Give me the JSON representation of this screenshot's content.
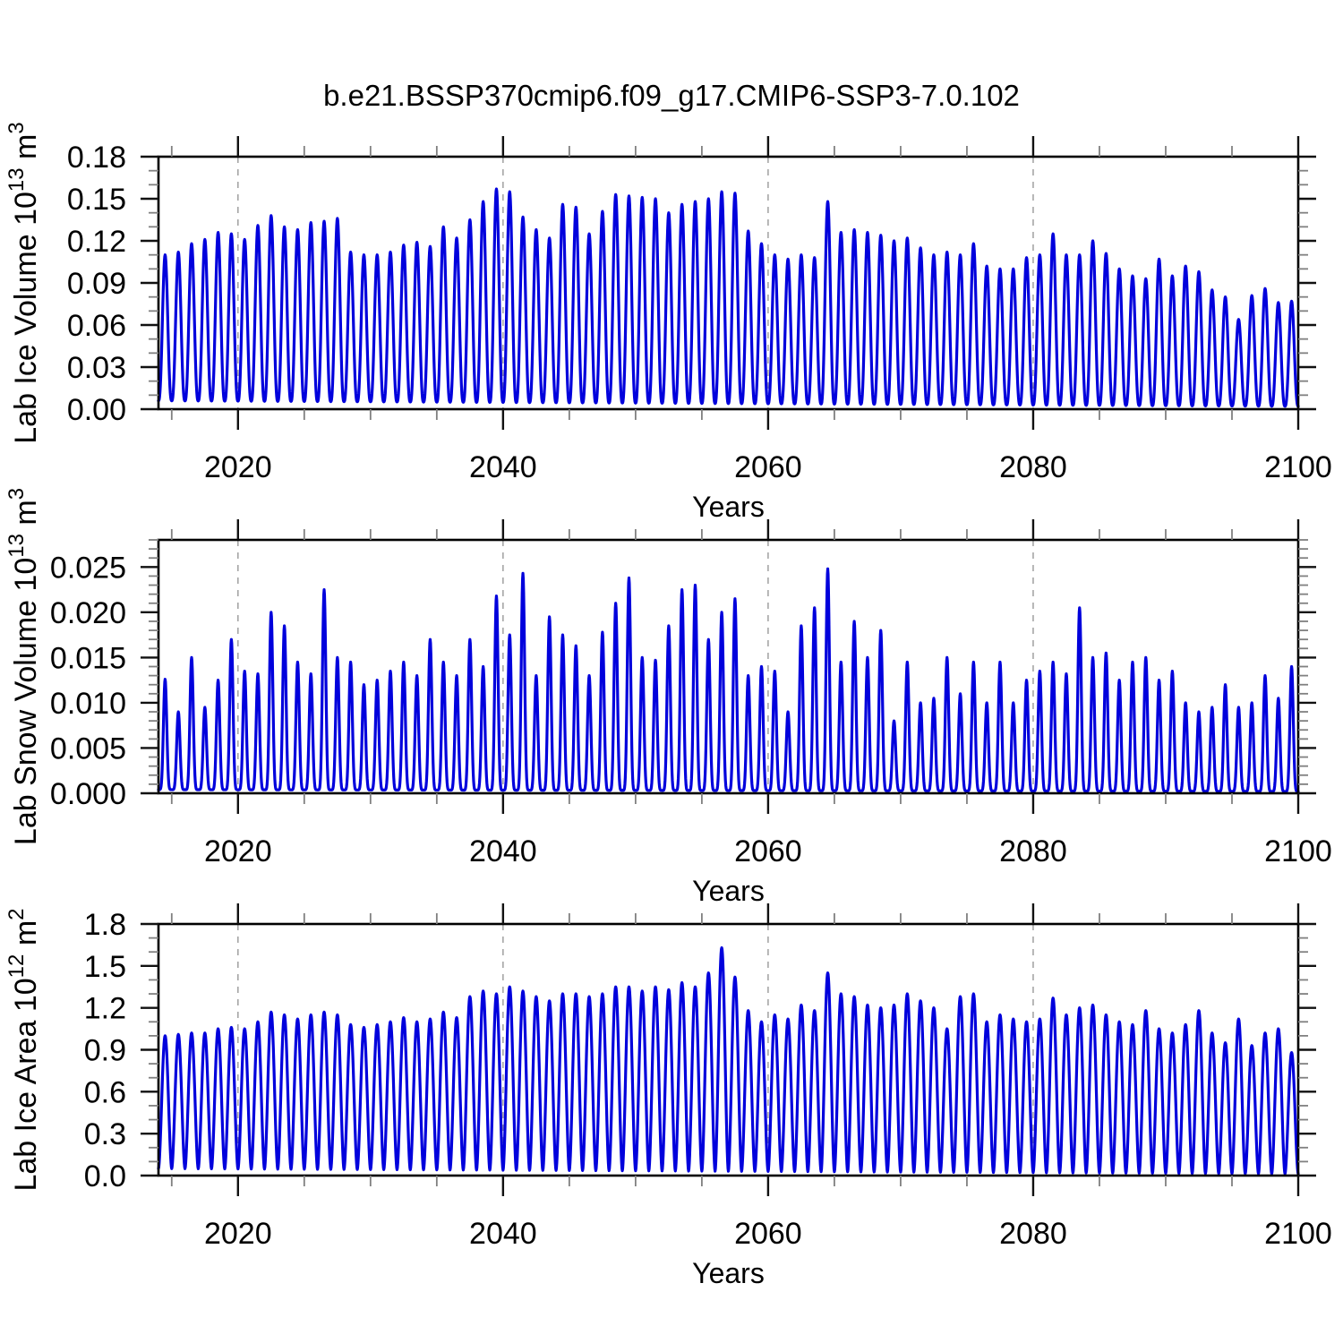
{
  "title": "b.e21.BSSP370cmip6.f09_g17.CMIP6-SSP3-7.0.102",
  "chart_data": {
    "type": "line",
    "title": "b.e21.BSSP370cmip6.f09_g17.CMIP6-SSP3-7.0.102",
    "legend": "none",
    "grid": "vertical-dashed-at-decades",
    "colors": {
      "line": "#0101dc",
      "frame": "#000000",
      "major_tick": "#111111",
      "minor_tick": "#808080",
      "grid_line": "#999999",
      "text": "#000000",
      "background": "#ffffff"
    },
    "x": {
      "label": "Years",
      "lim": [
        2014,
        2100
      ],
      "tick_years": [
        2020,
        2040,
        2060,
        2080,
        2100
      ],
      "minor_step": 5,
      "grid_years": [
        2020,
        2040,
        2060,
        2080
      ],
      "start_year": 2014
    },
    "panels": [
      {
        "id": "lab-ice-volume",
        "ylabel_prefix": "Lab Ice Volume 10",
        "ylabel_sup": "13",
        "ylabel_mid": " m",
        "ylabel_sup2": "3",
        "ylim": [
          0,
          0.18
        ],
        "ytick_step": 0.03,
        "ytick_labels": [
          "0.00",
          "0.03",
          "0.06",
          "0.09",
          "0.12",
          "0.15",
          "0.18"
        ],
        "y_minor_step": 0.01,
        "shape_power": 1.35,
        "trough_start": 0.006,
        "trough_end": 0.002,
        "annual_max": [
          0.11,
          0.112,
          0.118,
          0.121,
          0.126,
          0.125,
          0.121,
          0.131,
          0.138,
          0.13,
          0.128,
          0.133,
          0.134,
          0.136,
          0.112,
          0.11,
          0.11,
          0.112,
          0.117,
          0.119,
          0.116,
          0.13,
          0.122,
          0.135,
          0.148,
          0.157,
          0.155,
          0.137,
          0.128,
          0.122,
          0.146,
          0.144,
          0.125,
          0.141,
          0.153,
          0.152,
          0.151,
          0.15,
          0.14,
          0.146,
          0.148,
          0.15,
          0.155,
          0.154,
          0.127,
          0.118,
          0.11,
          0.107,
          0.11,
          0.108,
          0.148,
          0.126,
          0.128,
          0.126,
          0.124,
          0.12,
          0.122,
          0.115,
          0.11,
          0.112,
          0.11,
          0.118,
          0.102,
          0.1,
          0.1,
          0.108,
          0.11,
          0.125,
          0.11,
          0.11,
          0.12,
          0.111,
          0.1,
          0.095,
          0.093,
          0.107,
          0.095,
          0.102,
          0.098,
          0.085,
          0.08,
          0.064,
          0.081,
          0.086,
          0.076,
          0.077,
          0.077
        ]
      },
      {
        "id": "lab-snow-volume",
        "ylabel_prefix": "Lab Snow Volume 10",
        "ylabel_sup": "13",
        "ylabel_mid": " m",
        "ylabel_sup2": "3",
        "ylim": [
          0,
          0.028
        ],
        "ytick_step": 0.005,
        "ytick_labels": [
          "0.000",
          "0.005",
          "0.010",
          "0.015",
          "0.020",
          "0.025"
        ],
        "y_minor_step": 0.001,
        "shape_power": 3.2,
        "trough_start": 0.0004,
        "trough_end": 0.0002,
        "annual_max": [
          0.0126,
          0.009,
          0.015,
          0.0095,
          0.0125,
          0.017,
          0.0135,
          0.0132,
          0.02,
          0.0185,
          0.0145,
          0.0132,
          0.0225,
          0.015,
          0.0145,
          0.012,
          0.0125,
          0.0135,
          0.0145,
          0.013,
          0.017,
          0.0145,
          0.013,
          0.017,
          0.014,
          0.0218,
          0.0175,
          0.0243,
          0.013,
          0.0195,
          0.0175,
          0.0163,
          0.013,
          0.0178,
          0.021,
          0.0238,
          0.015,
          0.0147,
          0.0185,
          0.0225,
          0.023,
          0.017,
          0.02,
          0.0215,
          0.013,
          0.014,
          0.0135,
          0.009,
          0.0185,
          0.0205,
          0.0248,
          0.0145,
          0.019,
          0.015,
          0.018,
          0.008,
          0.0145,
          0.01,
          0.0105,
          0.015,
          0.011,
          0.0145,
          0.01,
          0.0145,
          0.01,
          0.0125,
          0.0135,
          0.0145,
          0.0132,
          0.0205,
          0.015,
          0.0155,
          0.0125,
          0.0145,
          0.015,
          0.0125,
          0.0135,
          0.01,
          0.009,
          0.0095,
          0.012,
          0.0095,
          0.01,
          0.013,
          0.0105,
          0.014,
          0.0125
        ]
      },
      {
        "id": "lab-ice-area",
        "ylabel_prefix": "Lab Ice Area 10",
        "ylabel_sup": "12",
        "ylabel_mid": " m",
        "ylabel_sup2": "2",
        "ylim": [
          0,
          1.8
        ],
        "ytick_step": 0.3,
        "ytick_labels": [
          "0.0",
          "0.3",
          "0.6",
          "0.9",
          "1.2",
          "1.5",
          "1.8"
        ],
        "y_minor_step": 0.1,
        "shape_power": 0.9,
        "trough_start": 0.05,
        "trough_end": 0.012,
        "annual_max": [
          1.0,
          1.01,
          1.02,
          1.02,
          1.05,
          1.06,
          1.05,
          1.1,
          1.17,
          1.15,
          1.12,
          1.15,
          1.17,
          1.15,
          1.08,
          1.06,
          1.08,
          1.1,
          1.13,
          1.1,
          1.12,
          1.17,
          1.13,
          1.28,
          1.32,
          1.3,
          1.35,
          1.32,
          1.28,
          1.25,
          1.3,
          1.3,
          1.28,
          1.3,
          1.35,
          1.35,
          1.32,
          1.35,
          1.33,
          1.38,
          1.35,
          1.45,
          1.63,
          1.42,
          1.18,
          1.1,
          1.15,
          1.12,
          1.22,
          1.18,
          1.45,
          1.3,
          1.28,
          1.22,
          1.2,
          1.22,
          1.3,
          1.25,
          1.2,
          1.05,
          1.28,
          1.3,
          1.1,
          1.15,
          1.12,
          1.1,
          1.12,
          1.27,
          1.15,
          1.2,
          1.22,
          1.15,
          1.1,
          1.08,
          1.18,
          1.05,
          1.02,
          1.08,
          1.18,
          1.02,
          0.95,
          1.12,
          0.93,
          1.02,
          1.05,
          0.88,
          0.85
        ]
      }
    ]
  }
}
